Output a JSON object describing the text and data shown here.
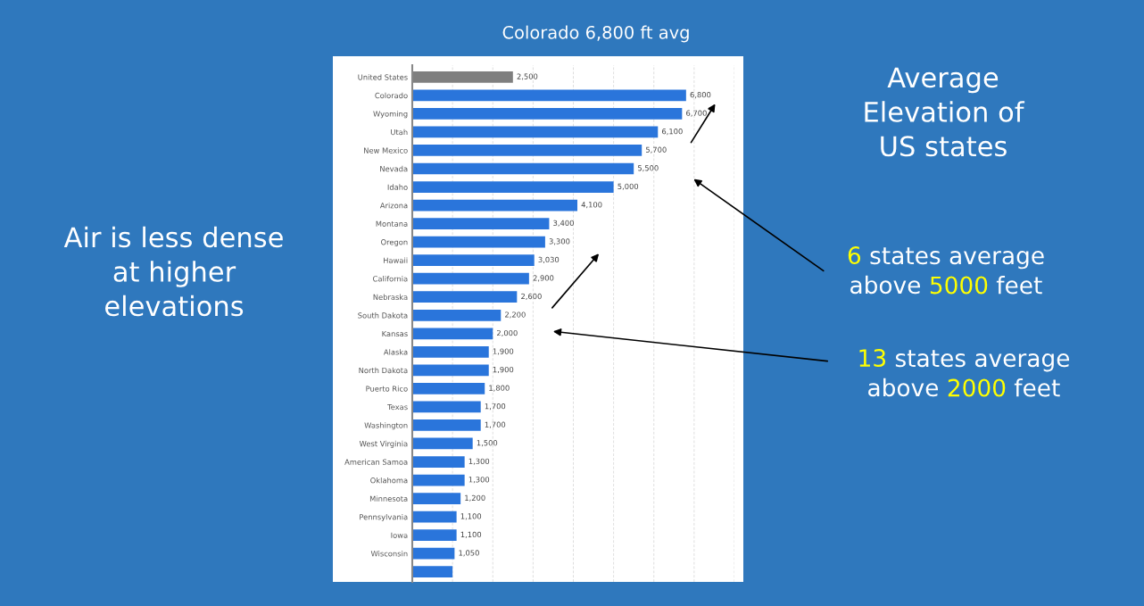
{
  "chart_data": {
    "type": "bar",
    "orientation": "horizontal",
    "title": "Colorado 6,800 ft avg",
    "categories": [
      "United States",
      "Colorado",
      "Wyoming",
      "Utah",
      "New Mexico",
      "Nevada",
      "Idaho",
      "Arizona",
      "Montana",
      "Oregon",
      "Hawaii",
      "California",
      "Nebraska",
      "South Dakota",
      "Kansas",
      "Alaska",
      "North Dakota",
      "Puerto Rico",
      "Texas",
      "Washington",
      "West Virginia",
      "American Samoa",
      "Oklahoma",
      "Minnesota",
      "Pennsylvania",
      "Iowa",
      "Wisconsin",
      null
    ],
    "values": [
      2500,
      6800,
      6700,
      6100,
      5700,
      5500,
      5000,
      4100,
      3400,
      3300,
      3030,
      2900,
      2600,
      2200,
      2000,
      1900,
      1900,
      1800,
      1700,
      1700,
      1500,
      1300,
      1300,
      1200,
      1100,
      1100,
      1050,
      1000
    ],
    "colors": [
      "#7f7f7f",
      "#2a75db",
      "#2a75db",
      "#2a75db",
      "#2a75db",
      "#2a75db",
      "#2a75db",
      "#2a75db",
      "#2a75db",
      "#2a75db",
      "#2a75db",
      "#2a75db",
      "#2a75db",
      "#2a75db",
      "#2a75db",
      "#2a75db",
      "#2a75db",
      "#2a75db",
      "#2a75db",
      "#2a75db",
      "#2a75db",
      "#2a75db",
      "#2a75db",
      "#2a75db",
      "#2a75db",
      "#2a75db",
      "#2a75db",
      "#2a75db"
    ],
    "value_labels": [
      "2,500",
      "6,800",
      "6,700",
      "6,100",
      "5,700",
      "5,500",
      "5,000",
      "4,100",
      "3,400",
      "3,300",
      "3,030",
      "2,900",
      "2,600",
      "2,200",
      "2,000",
      "1,900",
      "1,900",
      "1,800",
      "1,700",
      "1,700",
      "1,500",
      "1,300",
      "1,300",
      "1,200",
      "1,100",
      "1,100",
      "1,050",
      null
    ],
    "xlim": [
      0,
      8000
    ],
    "xticks": [
      {
        "value": 0,
        "label": null
      },
      {
        "value": 1000,
        "label": null
      },
      {
        "value": 2000,
        "label": null
      },
      {
        "value": 3000,
        "label": null
      },
      {
        "value": 4000,
        "label": null
      },
      {
        "value": 5000,
        "label": null
      },
      {
        "value": 6000,
        "label": null
      },
      {
        "value": 7000,
        "label": null
      },
      {
        "value": 8000,
        "label": null
      }
    ],
    "tick_labels": "y",
    "grid": "x",
    "annotations": [
      "Average\nElevation of\nUS states",
      "Air is less dense\nat higher\nelevations",
      "6 states average\nabove 5000 feet",
      "13 states average\nabove 2000 feet"
    ]
  }
}
